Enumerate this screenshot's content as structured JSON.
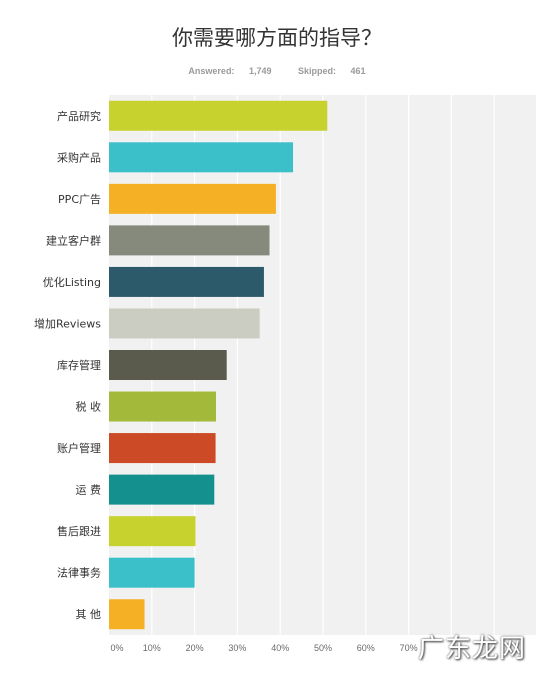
{
  "header": {
    "title": "你需要哪方面的指导？",
    "answered_label": "Answered:",
    "answered_value": "1,749",
    "skipped_label": "Skipped:",
    "skipped_value": "461"
  },
  "watermark": "广东龙网",
  "chart_data": {
    "type": "bar",
    "orientation": "horizontal",
    "title": "你需要哪方面的指导？",
    "categories": [
      "产品研究",
      "采购产品",
      "PPC广告",
      "建立客户群",
      "优化Listing",
      "增加Reviews",
      "库存管理",
      "税 收",
      "账户管理",
      "运 费",
      "售后跟进",
      "法律事务",
      "其 他"
    ],
    "values": [
      51,
      43,
      39,
      37.5,
      36.2,
      35.2,
      27.5,
      25,
      24.9,
      24.6,
      20.2,
      20,
      8.3
    ],
    "colors": [
      "#c7d22f",
      "#3bbfc9",
      "#f5b025",
      "#868a7c",
      "#2d5a6b",
      "#cbcdc2",
      "#5a5b4c",
      "#a3b93a",
      "#cc4a26",
      "#14908e",
      "#c7d22f",
      "#3bbfc9",
      "#f5b025"
    ],
    "xlim": [
      0,
      100
    ],
    "ticks": [
      0,
      10,
      20,
      30,
      40,
      50,
      60,
      70
    ],
    "tick_labels": [
      "0%",
      "10%",
      "20%",
      "30%",
      "40%",
      "50%",
      "60%",
      "70%"
    ],
    "grid": true,
    "legend": "none"
  }
}
